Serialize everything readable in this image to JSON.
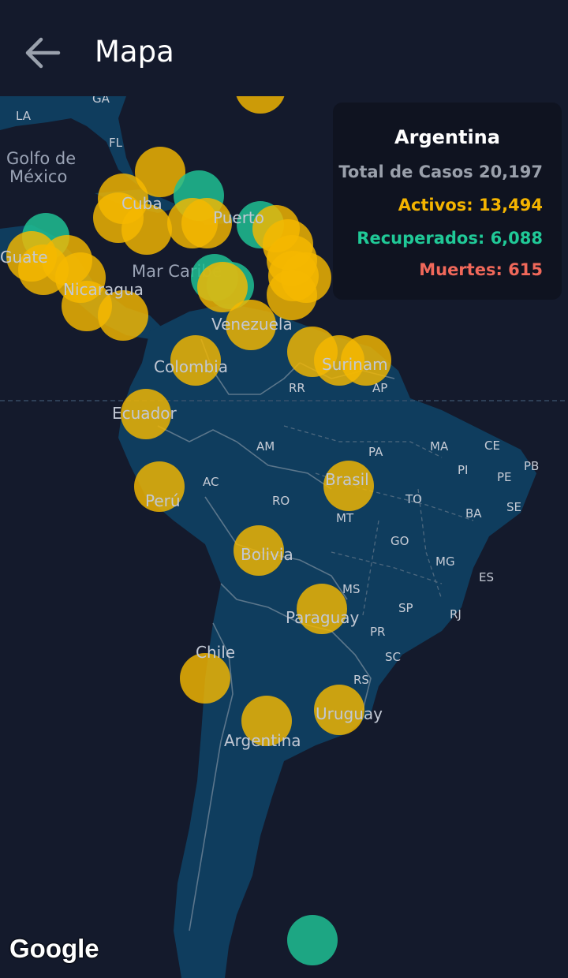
{
  "appbar": {
    "title": "Mapa",
    "back_icon": "arrow-left-icon"
  },
  "map": {
    "labels": {
      "gulf_line1": "Golfo de",
      "gulf_line2": "México",
      "caribbean": "Mar Caribe",
      "la": "LA",
      "ga": "GA",
      "fl": "FL",
      "cuba": "Cuba",
      "puerto": "Puerto",
      "guatemala": "Guate",
      "nicaragua": "Nicaragua",
      "venezuela": "Venezuela",
      "colombia": "Colombia",
      "suriname": "Surinam",
      "ecuador": "Ecuador",
      "peru": "Perú",
      "brasil": "Brasil",
      "bolivia": "Bolivia",
      "paraguay": "Paraguay",
      "chile": "Chile",
      "argentina": "Argentina",
      "uruguay": "Uruguay"
    },
    "states": [
      "RR",
      "AP",
      "AM",
      "PA",
      "MA",
      "CE",
      "PB",
      "PI",
      "PE",
      "AC",
      "RO",
      "TO",
      "SE",
      "BA",
      "MT",
      "GO",
      "MG",
      "ES",
      "MS",
      "SP",
      "RJ",
      "PR",
      "SC",
      "RS"
    ]
  },
  "tooltip": {
    "country": "Argentina",
    "total": "Total de Casos 20,197",
    "active": "Activos: 13,494",
    "recovered": "Recuperados: 6,088",
    "deaths": "Muertes: 615"
  },
  "colors": {
    "active": "#f4b400",
    "recovered": "#20c997",
    "deaths": "#f0685a",
    "land": "#0f3d5e",
    "water": "#141a2c"
  },
  "attribution": "Google"
}
